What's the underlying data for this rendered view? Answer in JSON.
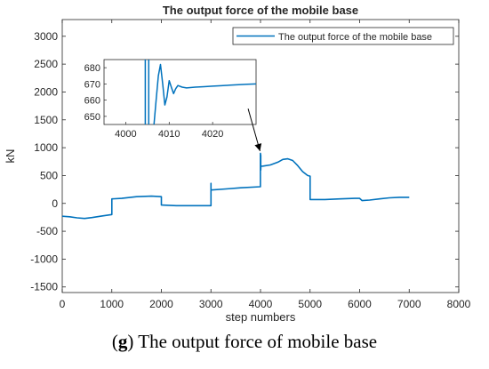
{
  "colors": {
    "line": "#0072BD",
    "axis": "#262626",
    "arrow": "#000000"
  },
  "caption": {
    "open": "(",
    "letter": "g",
    "close": ")",
    "text": " The output force of mobile base"
  },
  "chart_data": {
    "type": "line",
    "title": "The output force of the mobile base",
    "xlabel": "step numbers",
    "ylabel": "kN",
    "xlim": [
      0,
      8000
    ],
    "ylim": [
      -1600,
      3300
    ],
    "xticks": [
      0,
      1000,
      2000,
      3000,
      4000,
      5000,
      6000,
      7000,
      8000
    ],
    "yticks": [
      -1500,
      -1000,
      -500,
      0,
      500,
      1000,
      1500,
      2000,
      2500,
      3000
    ],
    "grid": false,
    "legend": {
      "location": "top-right",
      "entries": [
        "The output force of the mobile base"
      ]
    },
    "series": [
      {
        "name": "The output force of the mobile base",
        "x": [
          0,
          150,
          300,
          450,
          600,
          800,
          1000,
          1000,
          1000,
          1200,
          1500,
          1800,
          2000,
          2000,
          2000,
          2300,
          2600,
          3000,
          3000,
          3000,
          3000,
          3300,
          3600,
          3999,
          3999,
          4005,
          4005,
          4007,
          4012,
          4050,
          4200,
          4350,
          4450,
          4550,
          4650,
          4750,
          4850,
          4950,
          5000,
          5000,
          5300,
          5600,
          5900,
          6000,
          6050,
          6200,
          6400,
          6600,
          6800,
          7000
        ],
        "y": [
          -230,
          -240,
          -260,
          -270,
          -255,
          -225,
          -200,
          -200,
          80,
          90,
          120,
          130,
          120,
          -20,
          -30,
          -40,
          -40,
          -40,
          240,
          360,
          240,
          260,
          280,
          300,
          900,
          860,
          600,
          660,
          668,
          670,
          690,
          740,
          790,
          800,
          770,
          680,
          570,
          500,
          490,
          70,
          70,
          80,
          90,
          90,
          50,
          60,
          80,
          100,
          110,
          110
        ]
      }
    ],
    "annotation": {
      "from_x": 3750,
      "from_y": 1700,
      "to_x": 3990,
      "to_y": 940
    },
    "inset": {
      "xlim": [
        3995,
        4030
      ],
      "ylim": [
        645,
        685
      ],
      "xticks": [
        4000,
        4010,
        4020
      ],
      "yticks": [
        650,
        660,
        670,
        680
      ],
      "series": {
        "x": [
          4004.5,
          4004.5,
          4005.3,
          4005.3,
          4006.5,
          4007,
          4007.5,
          4008,
          4008.5,
          4009,
          4009.5,
          4010,
          4010.5,
          4011,
          4011.5,
          4012,
          4013,
          4014,
          4016,
          4018,
          4020,
          4022,
          4024,
          4026,
          4028,
          4030
        ],
        "y": [
          640,
          690,
          690,
          640,
          645,
          660,
          675,
          682,
          670,
          657,
          662,
          672,
          668,
          664,
          667,
          669,
          668,
          667.5,
          668,
          668.3,
          668.6,
          668.9,
          669.2,
          669.5,
          669.8,
          670
        ]
      }
    }
  }
}
